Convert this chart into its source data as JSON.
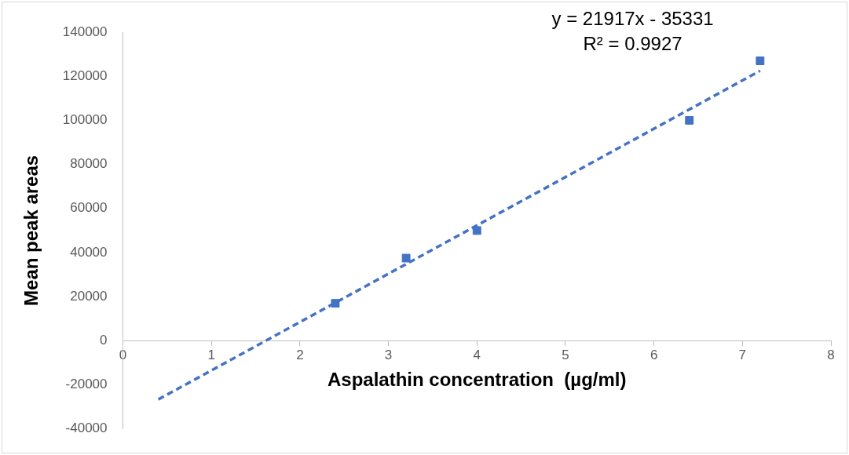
{
  "chart_data": {
    "type": "scatter",
    "xlabel": "Aspalathin concentration  (µg/ml)",
    "ylabel": "Mean peak areas",
    "xlim": [
      0,
      8
    ],
    "xticks": [
      0,
      1,
      2,
      3,
      4,
      5,
      6,
      7,
      8
    ],
    "ylim": [
      -40000,
      140000
    ],
    "yticks": [
      -40000,
      -20000,
      0,
      20000,
      40000,
      60000,
      80000,
      100000,
      120000,
      140000
    ],
    "grid": false,
    "legend": false,
    "annotations": [
      "y = 21917x - 35331",
      "R² = 0.9927"
    ],
    "series": [
      {
        "type": "scatter",
        "marker": "square",
        "color": "#4472c4",
        "x": [
          2.4,
          3.2,
          4.0,
          6.4,
          7.2
        ],
        "values": [
          17000,
          37500,
          50000,
          100000,
          127000
        ]
      },
      {
        "type": "line",
        "color": "#4472c4",
        "line_style": "dashed",
        "x": [
          0.4,
          7.2
        ],
        "values": [
          -26600,
          122500
        ]
      }
    ]
  }
}
